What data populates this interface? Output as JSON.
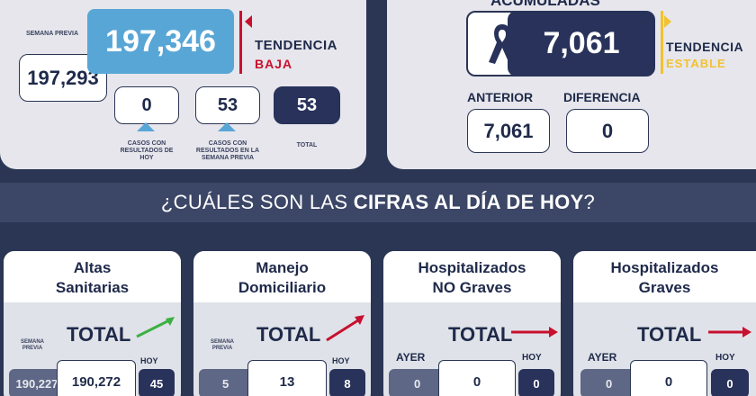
{
  "left_panel": {
    "semana_previa_label": "SEMANA PREVIA",
    "semana_previa_value": "197,293",
    "current_value": "197,346",
    "tendencia_label": "TENDENCIA",
    "tendencia_state": "BAJA",
    "casos_hoy_value": "0",
    "casos_hoy_label": "CASOS CON RESULTADOS DE HOY",
    "casos_semana_value": "53",
    "casos_semana_label": "CASOS CON RESULTADOS EN LA SEMANA PREVIA",
    "total_value": "53",
    "total_label": "TOTAL"
  },
  "right_panel": {
    "heading": "ACUMULADAS",
    "current_value": "7,061",
    "tendencia_label": "TENDENCIA",
    "tendencia_state": "ESTABLE",
    "anterior_label": "ANTERIOR",
    "anterior_value": "7,061",
    "diferencia_label": "DIFERENCIA",
    "diferencia_value": "0"
  },
  "banner": {
    "prefix": "¿CUÁLES SON LAS ",
    "bold": "CIFRAS AL DÍA DE HOY",
    "suffix": "?"
  },
  "cards": [
    {
      "title_line1": "Altas",
      "title_line2": "Sanitarias",
      "total_label": "TOTAL",
      "left_label": "SEMANA PREVIA",
      "left_value": "190,227",
      "mid_value": "190,272",
      "right_label": "HOY",
      "right_value": "45"
    },
    {
      "title_line1": "Manejo",
      "title_line2": "Domiciliario",
      "total_label": "TOTAL",
      "left_label": "SEMANA PREVIA",
      "left_value": "5",
      "mid_value": "13",
      "right_label": "HOY",
      "right_value": "8"
    },
    {
      "title_line1": "Hospitalizados",
      "title_line2": "NO Graves",
      "total_label": "TOTAL",
      "left_label": "AYER",
      "left_value": "0",
      "mid_value": "0",
      "right_label": "HOY",
      "right_value": "0"
    },
    {
      "title_line1": "Hospitalizados",
      "title_line2": "Graves",
      "total_label": "TOTAL",
      "left_label": "AYER",
      "left_value": "0",
      "mid_value": "0",
      "right_label": "HOY",
      "right_value": "0"
    }
  ],
  "colors": {
    "navy": "#28325a",
    "blue": "#58a6d6",
    "red": "#c8102e",
    "yellow": "#f2c230",
    "green": "#3cb043"
  },
  "icons": [
    "ribbon-icon",
    "trend-up-arrow-icon",
    "trend-flat-arrow-icon",
    "flag-icon"
  ]
}
